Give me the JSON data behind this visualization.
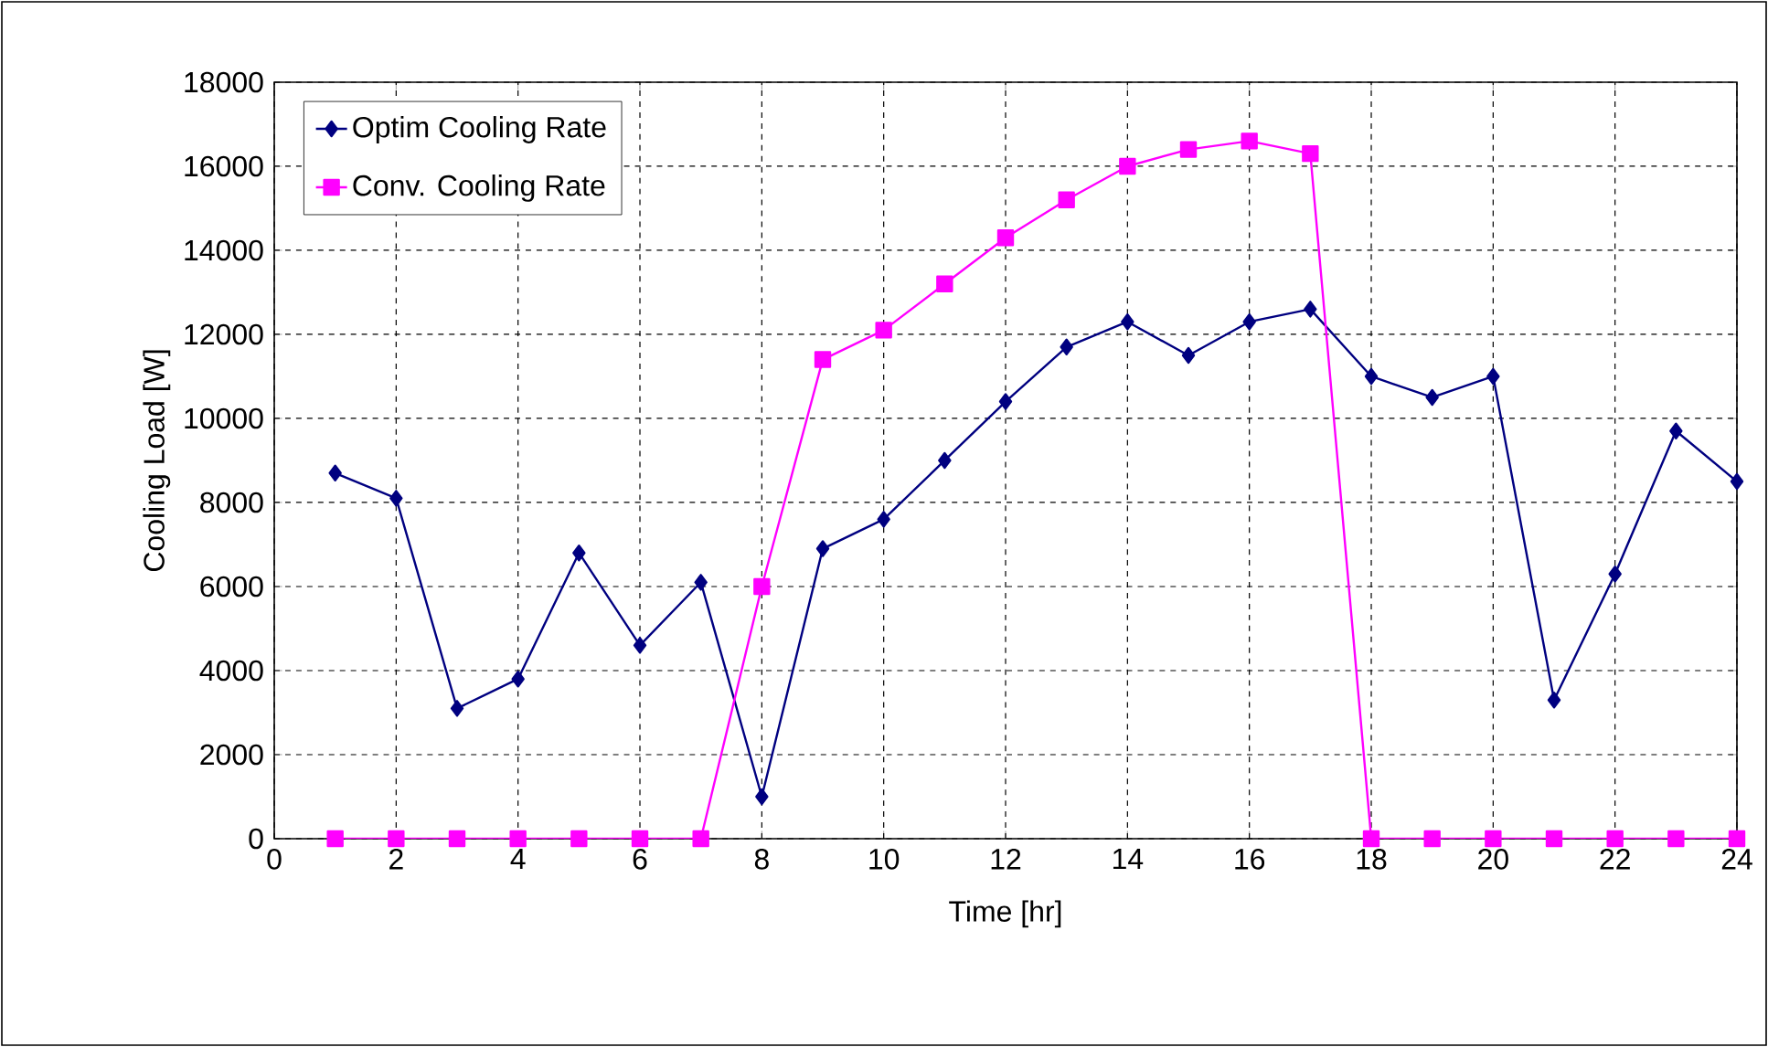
{
  "chart_data": {
    "type": "line",
    "xlabel": "Time [hr]",
    "ylabel": "Cooling Load  [W]",
    "x": [
      1,
      2,
      3,
      4,
      5,
      6,
      7,
      8,
      9,
      10,
      11,
      12,
      13,
      14,
      15,
      16,
      17,
      18,
      19,
      20,
      21,
      22,
      23,
      24
    ],
    "series": [
      {
        "name": "Optim Cooling Rate",
        "color": "#000080",
        "marker": "diamond",
        "values": [
          8700,
          8100,
          3100,
          3800,
          6800,
          4600,
          6100,
          1000,
          6900,
          7600,
          9000,
          10400,
          11700,
          12300,
          11500,
          12300,
          12600,
          11000,
          10500,
          11000,
          3300,
          6300,
          9700,
          8500
        ]
      },
      {
        "name": "Conv. Cooling Rate",
        "color": "#ff00ff",
        "marker": "square",
        "values": [
          0,
          0,
          0,
          0,
          0,
          0,
          0,
          6000,
          11400,
          12100,
          13200,
          14300,
          15200,
          16000,
          16400,
          16600,
          16300,
          0,
          0,
          0,
          0,
          0,
          0,
          0
        ]
      }
    ],
    "xlim": [
      0,
      24
    ],
    "xticks": [
      0,
      2,
      4,
      6,
      8,
      10,
      12,
      14,
      16,
      18,
      20,
      22,
      24
    ],
    "ylim": [
      0,
      18000
    ],
    "yticks": [
      0,
      2000,
      4000,
      6000,
      8000,
      10000,
      12000,
      14000,
      16000,
      18000
    ],
    "grid": true,
    "legend": "top left",
    "line_style": "solid"
  }
}
